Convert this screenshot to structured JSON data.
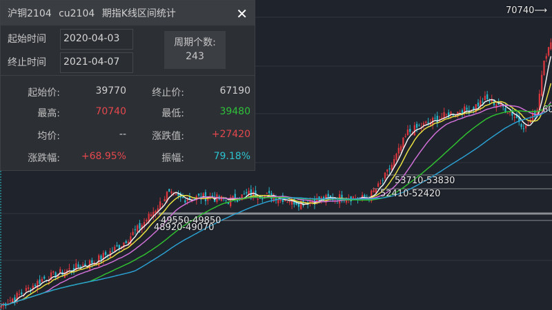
{
  "panel": {
    "title": "沪铜2104  cu2104  期指K线区间统计",
    "close_icon": "close-icon",
    "start_label": "起始时间",
    "start_value": "2020-04-03",
    "end_label": "终止时间",
    "end_value": "2021-04-07",
    "period_count_label": "周期个数:",
    "period_count": "243",
    "stats": {
      "start_price_label": "起始价:",
      "start_price": "39770",
      "end_price_label": "终止价:",
      "end_price": "67190",
      "high_label": "最高:",
      "high": "70740",
      "low_label": "最低:",
      "low": "39480",
      "avg_label": "均价:",
      "avg": "--",
      "change_label": "涨跌值:",
      "change": "+27420",
      "change_pct_label": "涨跌幅:",
      "change_pct": "+68.95%",
      "amplitude_label": "振幅:",
      "amplitude": "79.18%"
    },
    "colors": {
      "up": "#e5484d",
      "down": "#2fc23a",
      "amplitude": "#2cc3d0"
    }
  },
  "chart_data": {
    "type": "candlestick",
    "bars": 243,
    "ylim": [
      39480,
      70740
    ],
    "close_anchors": [
      [
        0,
        39770
      ],
      [
        9,
        41000
      ],
      [
        18,
        42500
      ],
      [
        30,
        43500
      ],
      [
        42,
        44500
      ],
      [
        52,
        46000
      ],
      [
        61,
        48000
      ],
      [
        70,
        50500
      ],
      [
        73,
        51500
      ],
      [
        79,
        51000
      ],
      [
        91,
        51200
      ],
      [
        100,
        50800
      ],
      [
        109,
        51500
      ],
      [
        122,
        51200
      ],
      [
        131,
        50600
      ],
      [
        143,
        51000
      ],
      [
        152,
        51200
      ],
      [
        161,
        51000
      ],
      [
        167,
        52500
      ],
      [
        173,
        55000
      ],
      [
        179,
        58000
      ],
      [
        188,
        59000
      ],
      [
        198,
        60000
      ],
      [
        207,
        60500
      ],
      [
        213,
        61500
      ],
      [
        219,
        61000
      ],
      [
        225,
        60000
      ],
      [
        231,
        58500
      ],
      [
        236,
        60500
      ],
      [
        239,
        66000
      ],
      [
        242,
        67190
      ]
    ],
    "moving_averages": [
      {
        "period": 5,
        "color": "#f0f0f0"
      },
      {
        "period": 10,
        "color": "#e8e040"
      },
      {
        "period": 20,
        "color": "#d070d8"
      },
      {
        "period": 40,
        "color": "#30c030"
      },
      {
        "period": 60,
        "color": "#2a9fd0"
      }
    ],
    "candle_colors": {
      "up": "#d9363e",
      "down": "#27b5c8"
    },
    "annotations": {
      "high_marker": "70740⟶",
      "zones": [
        "53710-53830",
        "52410-52420",
        "49550-49850",
        "48920-49070"
      ],
      "partial": "60"
    }
  }
}
